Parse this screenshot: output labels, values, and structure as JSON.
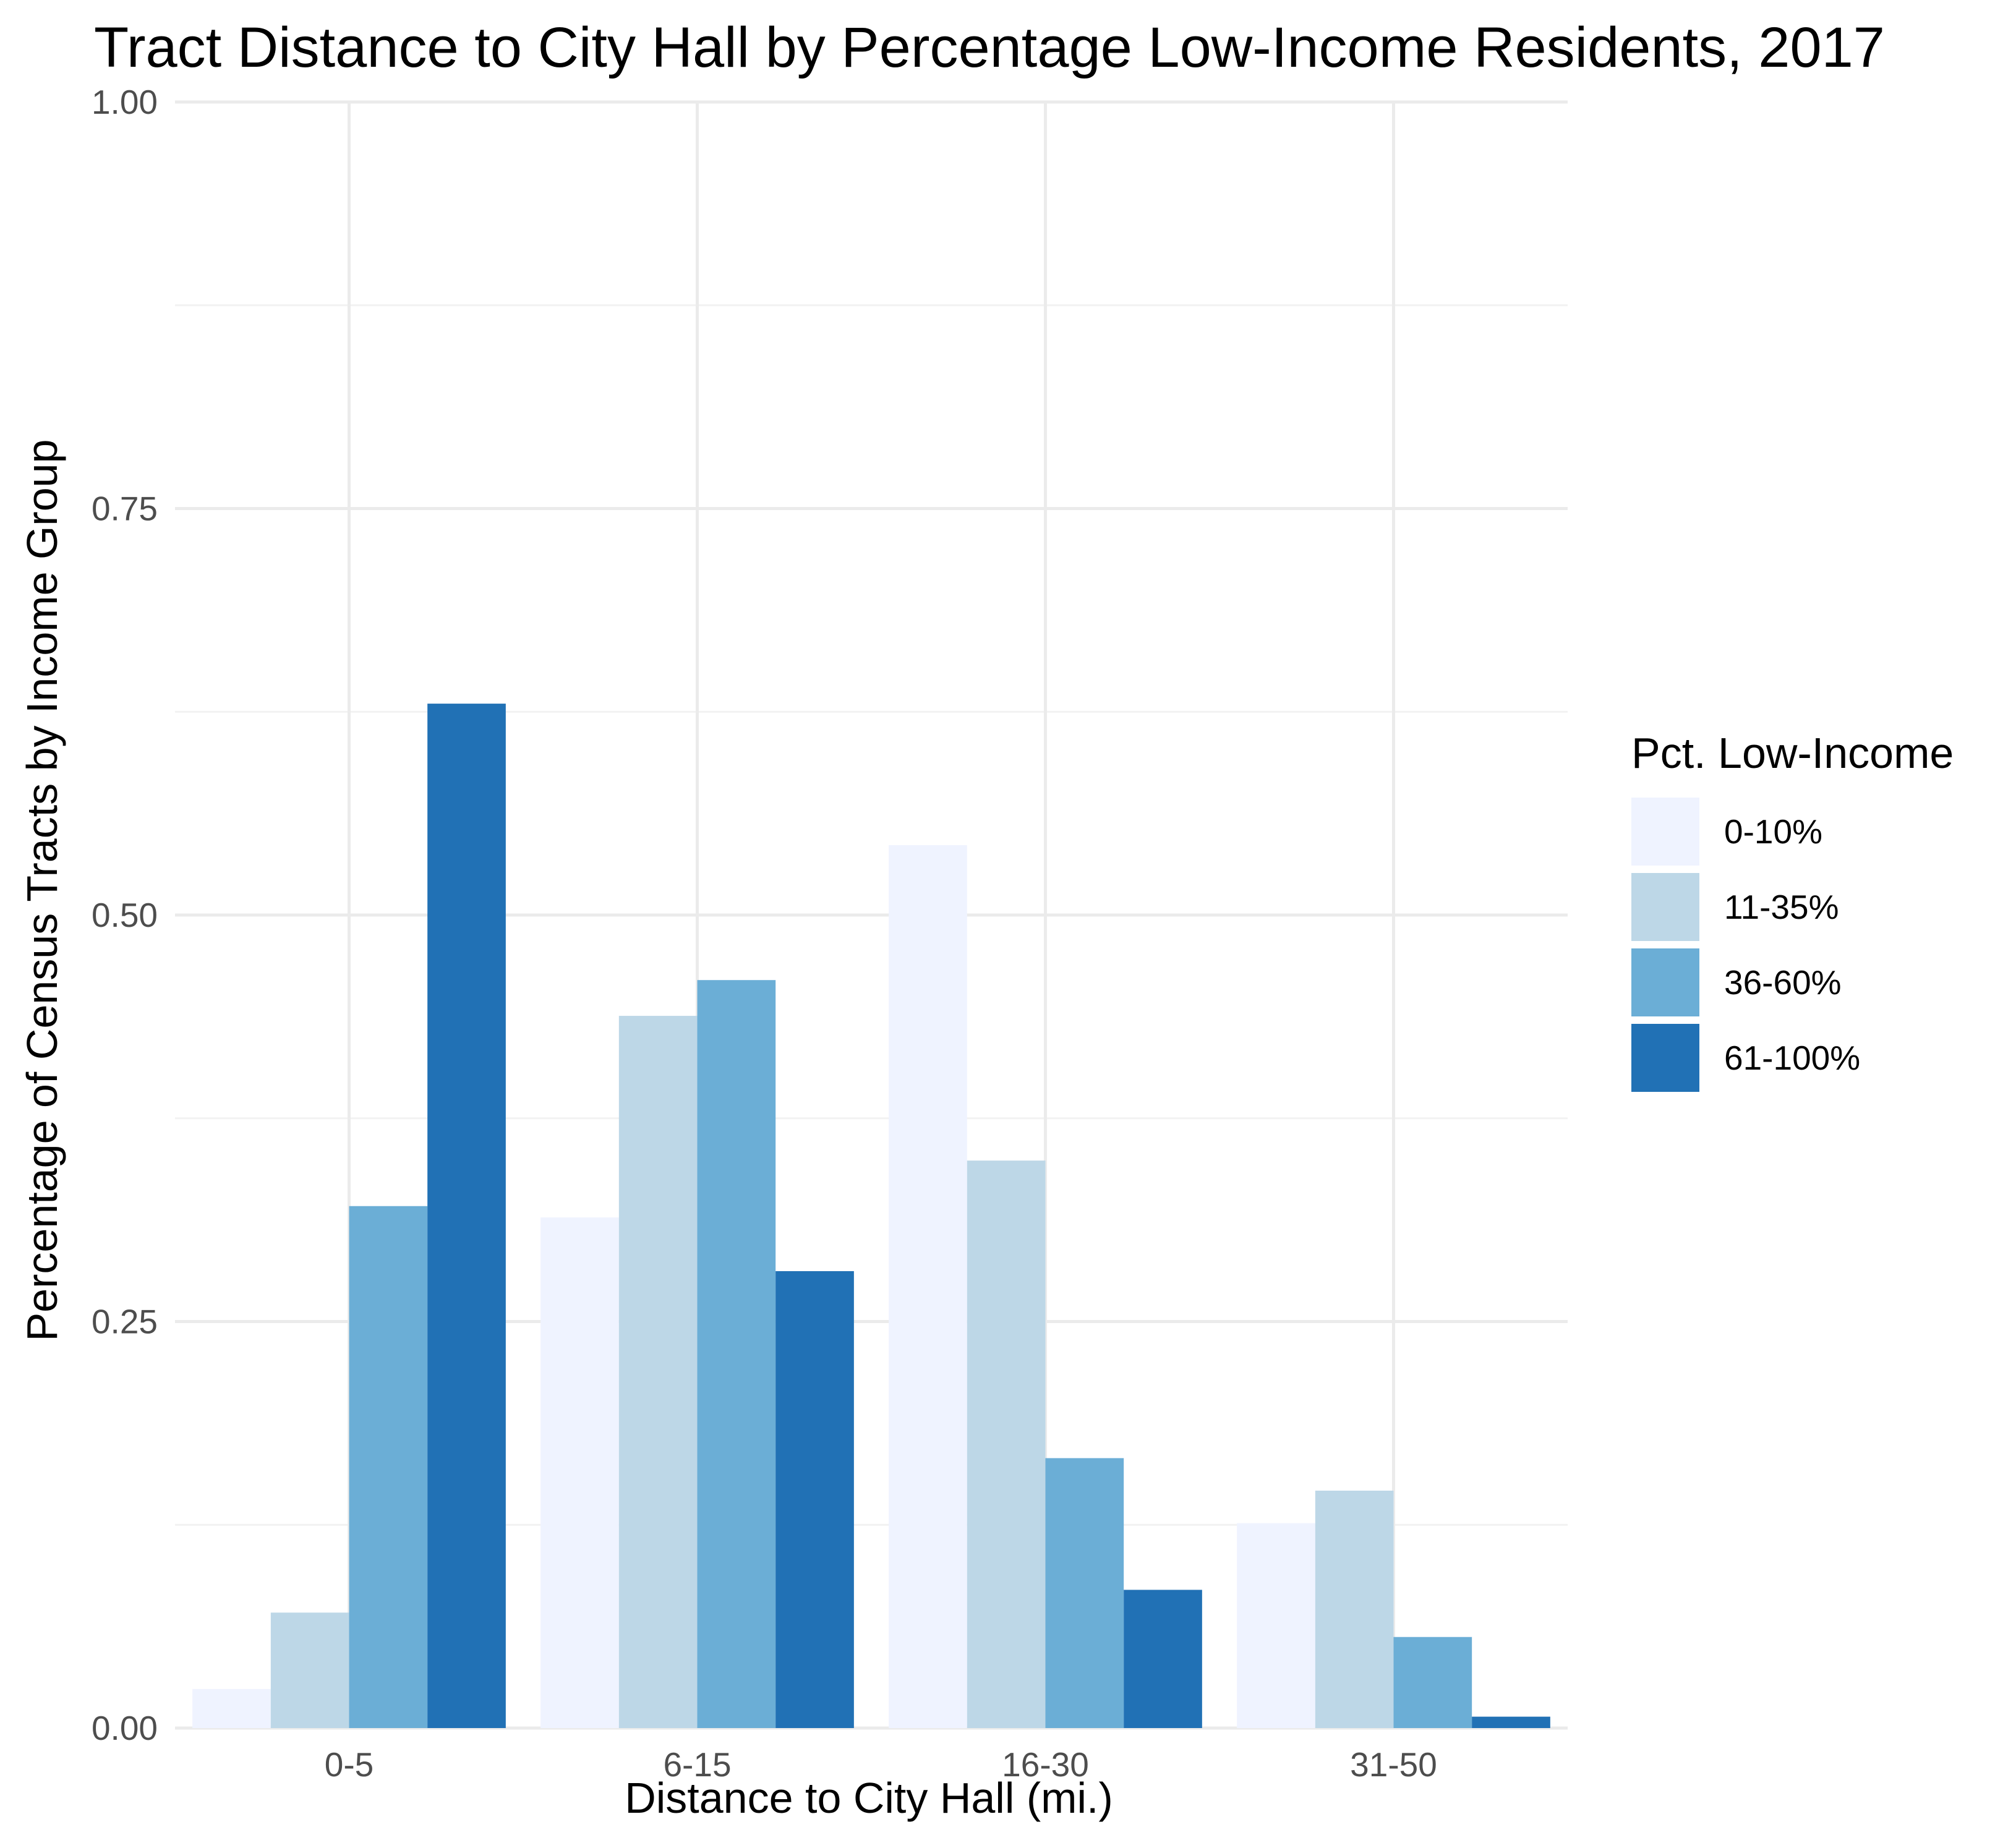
{
  "chart_data": {
    "type": "bar",
    "title": "Tract Distance to City Hall by Percentage Low-Income Residents, 2017",
    "xlabel": "Distance to City Hall (mi.)",
    "ylabel": "Percentage of Census Tracts by Income Group",
    "categories": [
      "0-5",
      "6-15",
      "16-30",
      "31-50"
    ],
    "ylim": [
      0,
      1
    ],
    "yticks": [
      "0.00",
      "0.25",
      "0.50",
      "0.75",
      "1.00"
    ],
    "grid": true,
    "legend_title": "Pct. Low-Income",
    "legend_position": "right",
    "series": [
      {
        "name": "0-10%",
        "color": "#eff3ff",
        "values": [
          0.024,
          0.314,
          0.543,
          0.126
        ]
      },
      {
        "name": "11-35%",
        "color": "#bdd7e7",
        "values": [
          0.071,
          0.438,
          0.349,
          0.146
        ]
      },
      {
        "name": "36-60%",
        "color": "#6baed6",
        "values": [
          0.321,
          0.46,
          0.166,
          0.056
        ]
      },
      {
        "name": "61-100%",
        "color": "#2171b5",
        "values": [
          0.63,
          0.281,
          0.085,
          0.007
        ]
      }
    ]
  }
}
